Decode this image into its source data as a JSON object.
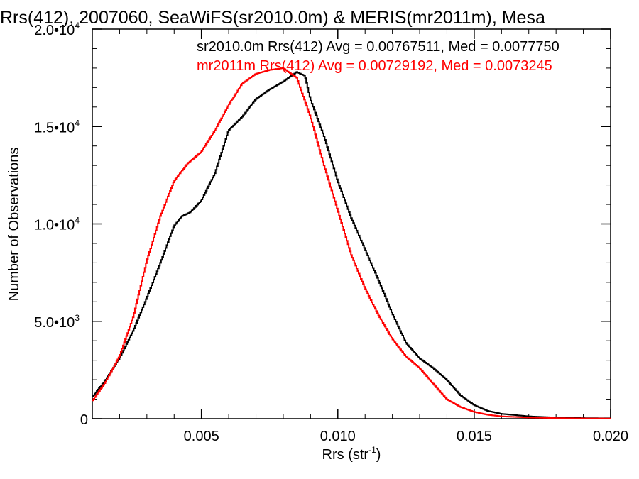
{
  "chart_data": {
    "type": "line",
    "title": "Rrs(412), 2007060, SeaWiFS(sr2010.0m) & MERIS(mr2011m), Mesa",
    "xlabel": "Rrs (str",
    "xlabel_sup": "-1",
    "xlabel_close": ")",
    "ylabel": "Number of Observations",
    "xlim": [
      0.001,
      0.02
    ],
    "ylim": [
      0,
      20000
    ],
    "x_ticks": [
      {
        "value": 0.005,
        "label": "0.005"
      },
      {
        "value": 0.01,
        "label": "0.010"
      },
      {
        "value": 0.015,
        "label": "0.015"
      },
      {
        "value": 0.02,
        "label": "0.020"
      }
    ],
    "y_ticks": [
      {
        "value": 0,
        "label": "0",
        "sup": ""
      },
      {
        "value": 5000,
        "label": "5.0•10",
        "sup": "3"
      },
      {
        "value": 10000,
        "label": "1.0•10",
        "sup": "4"
      },
      {
        "value": 15000,
        "label": "1.5•10",
        "sup": "4"
      },
      {
        "value": 20000,
        "label": "2.0•10",
        "sup": "4"
      }
    ],
    "step_plot": true,
    "grid": false,
    "legend_position": "top-right",
    "series": [
      {
        "name": "sr2010.0m",
        "color": "#000000",
        "label": "sr2010.0m Rrs(412) Avg = 0.00767511, Med = 0.0077750",
        "x": [
          0.001,
          0.0015,
          0.002,
          0.0025,
          0.003,
          0.0035,
          0.004,
          0.0043,
          0.0046,
          0.005,
          0.0055,
          0.006,
          0.0065,
          0.007,
          0.0075,
          0.008,
          0.0085,
          0.0088,
          0.009,
          0.0095,
          0.01,
          0.0105,
          0.011,
          0.0115,
          0.012,
          0.0125,
          0.013,
          0.0135,
          0.014,
          0.0145,
          0.015,
          0.0155,
          0.016,
          0.017,
          0.018,
          0.019,
          0.02
        ],
        "values": [
          1100,
          2000,
          3100,
          4500,
          6200,
          8000,
          9900,
          10400,
          10600,
          11200,
          12600,
          14800,
          15500,
          16400,
          16900,
          17300,
          17800,
          17600,
          16400,
          14500,
          12200,
          10300,
          8700,
          7100,
          5400,
          3900,
          3100,
          2600,
          2000,
          1200,
          700,
          400,
          250,
          120,
          60,
          30,
          20
        ]
      },
      {
        "name": "mr2011m",
        "color": "#ff0000",
        "label": "mr2011m Rrs(412) Avg = 0.00729192, Med = 0.0073245",
        "x": [
          0.001,
          0.0015,
          0.002,
          0.0025,
          0.003,
          0.0035,
          0.004,
          0.0045,
          0.005,
          0.0055,
          0.006,
          0.0065,
          0.007,
          0.0075,
          0.008,
          0.0085,
          0.009,
          0.0095,
          0.01,
          0.0105,
          0.011,
          0.0115,
          0.012,
          0.0125,
          0.013,
          0.0135,
          0.014,
          0.0145,
          0.015,
          0.0155,
          0.016,
          0.017,
          0.018,
          0.019,
          0.02
        ],
        "values": [
          900,
          1900,
          3200,
          5200,
          8100,
          10400,
          12200,
          13100,
          13700,
          14800,
          16100,
          17200,
          17700,
          17900,
          18000,
          17500,
          15500,
          13000,
          10700,
          8400,
          6700,
          5300,
          4100,
          3200,
          2600,
          1800,
          1000,
          600,
          350,
          200,
          120,
          60,
          30,
          15,
          10
        ]
      }
    ]
  }
}
